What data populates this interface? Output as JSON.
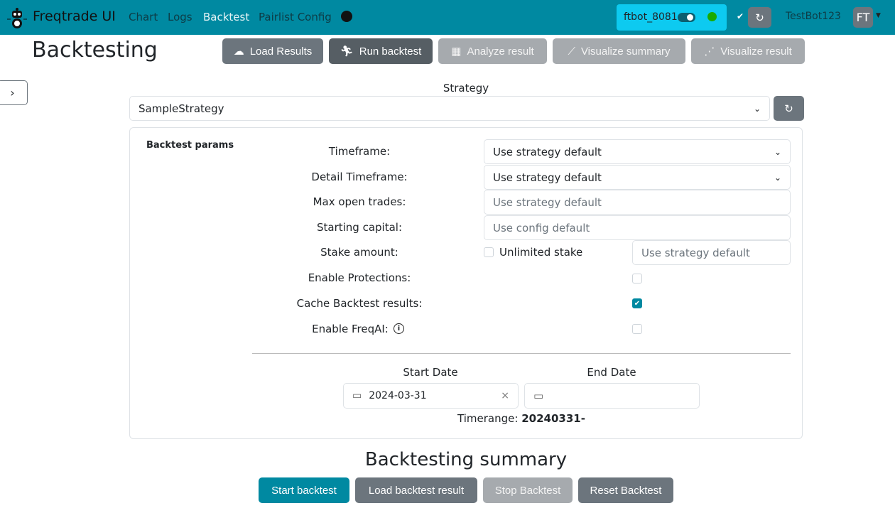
{
  "navbar": {
    "brand": "Freqtrade UI",
    "links": [
      "Chart",
      "Logs",
      "Backtest",
      "Pairlist Config"
    ],
    "active": "Backtest",
    "bot_name": "ftbot_8081",
    "bot_online": true,
    "user": "TestBot123",
    "avatar": "FT",
    "colors": {
      "navbar": "#0089a1",
      "bot_box": "#0dcaf0",
      "online": "#1aaa00"
    }
  },
  "page": {
    "title": "Backtesting",
    "toolbar": [
      "Load Results",
      "Run backtest",
      "Analyze result",
      "Visualize summary",
      "Visualize result"
    ]
  },
  "strategy": {
    "label": "Strategy",
    "value": "SampleStrategy"
  },
  "params": {
    "title": "Backtest params",
    "timeframe": {
      "label": "Timeframe:",
      "value": "Use strategy default"
    },
    "detail_timeframe": {
      "label": "Detail Timeframe:",
      "value": "Use strategy default"
    },
    "max_open_trades": {
      "label": "Max open trades:",
      "placeholder": "Use strategy default"
    },
    "starting_capital": {
      "label": "Starting capital:",
      "placeholder": "Use config default"
    },
    "stake_amount": {
      "label": "Stake amount:",
      "unlimited_label": "Unlimited stake",
      "unlimited": false,
      "placeholder": "Use strategy default"
    },
    "protections": {
      "label": "Enable Protections:",
      "checked": false
    },
    "cache": {
      "label": "Cache Backtest results:",
      "checked": true
    },
    "freqai": {
      "label": "Enable FreqAI:",
      "checked": false
    }
  },
  "dates": {
    "start_label": "Start Date",
    "start_value": "2024-03-31",
    "end_label": "End Date",
    "end_value": "",
    "timerange_label": "Timerange:",
    "timerange": "20240331-"
  },
  "summary": {
    "title": "Backtesting summary",
    "buttons": [
      "Start backtest",
      "Load backtest result",
      "Stop Backtest",
      "Reset Backtest"
    ]
  }
}
